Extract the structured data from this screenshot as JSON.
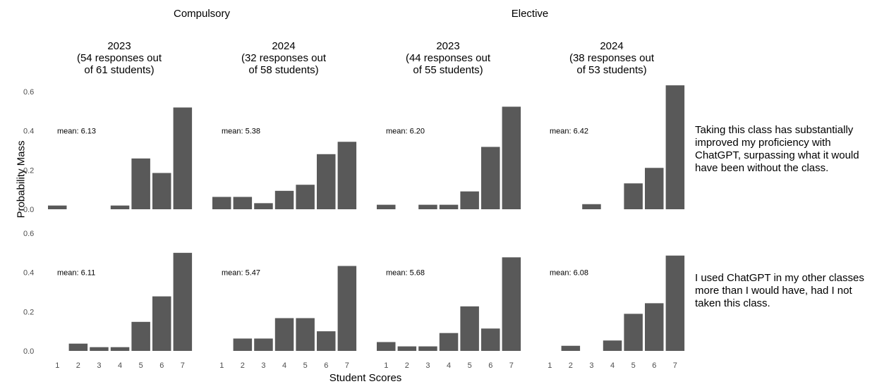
{
  "chart_data": {
    "type": "bar",
    "xlabel": "Student Scores",
    "ylabel": "Probability Mass",
    "categories": [
      "1",
      "2",
      "3",
      "4",
      "5",
      "6",
      "7"
    ],
    "y_ticks": [
      "0.0",
      "0.2",
      "0.4",
      "0.6"
    ],
    "ylim": [
      0,
      0.62
    ],
    "bar_color": "#595959",
    "groups": [
      "Compulsory",
      "Elective"
    ],
    "columns": [
      {
        "group": "Compulsory",
        "title": "2023\n(54 responses out\nof 61 students)"
      },
      {
        "group": "Compulsory",
        "title": "2024\n(32 responses out\nof 58 students)"
      },
      {
        "group": "Elective",
        "title": "2023\n(44 responses out\nof 55 students)"
      },
      {
        "group": "Elective",
        "title": "2024\n(38 responses out\nof 53 students)"
      }
    ],
    "rows": [
      {
        "label": "Taking this class has substantially\nimproved my proficiency with\nChatGPT, surpassing what it would\nhave been without the class.",
        "panels": [
          {
            "mean": "mean: 6.13",
            "values": [
              0.019,
              0,
              0,
              0.019,
              0.259,
              0.185,
              0.519
            ]
          },
          {
            "mean": "mean: 5.38",
            "values": [
              0.063,
              0.063,
              0.031,
              0.094,
              0.125,
              0.281,
              0.344
            ]
          },
          {
            "mean": "mean: 6.20",
            "values": [
              0.023,
              0,
              0.023,
              0.023,
              0.091,
              0.318,
              0.523
            ]
          },
          {
            "mean": "mean: 6.42",
            "values": [
              0,
              0,
              0.026,
              0,
              0.132,
              0.211,
              0.632
            ]
          }
        ]
      },
      {
        "label": "I used ChatGPT in my other classes\nmore than I would have, had I not\ntaken this class.",
        "panels": [
          {
            "mean": "mean: 6.11",
            "values": [
              0,
              0.037,
              0.019,
              0.019,
              0.148,
              0.278,
              0.5
            ]
          },
          {
            "mean": "mean: 5.47",
            "values": [
              0,
              0.063,
              0.063,
              0.167,
              0.167,
              0.1,
              0.433
            ]
          },
          {
            "mean": "mean: 5.68",
            "values": [
              0.045,
              0.023,
              0.023,
              0.091,
              0.227,
              0.114,
              0.477
            ]
          },
          {
            "mean": "mean: 6.08",
            "values": [
              0,
              0.026,
              0,
              0.053,
              0.189,
              0.243,
              0.486
            ]
          }
        ]
      }
    ]
  }
}
